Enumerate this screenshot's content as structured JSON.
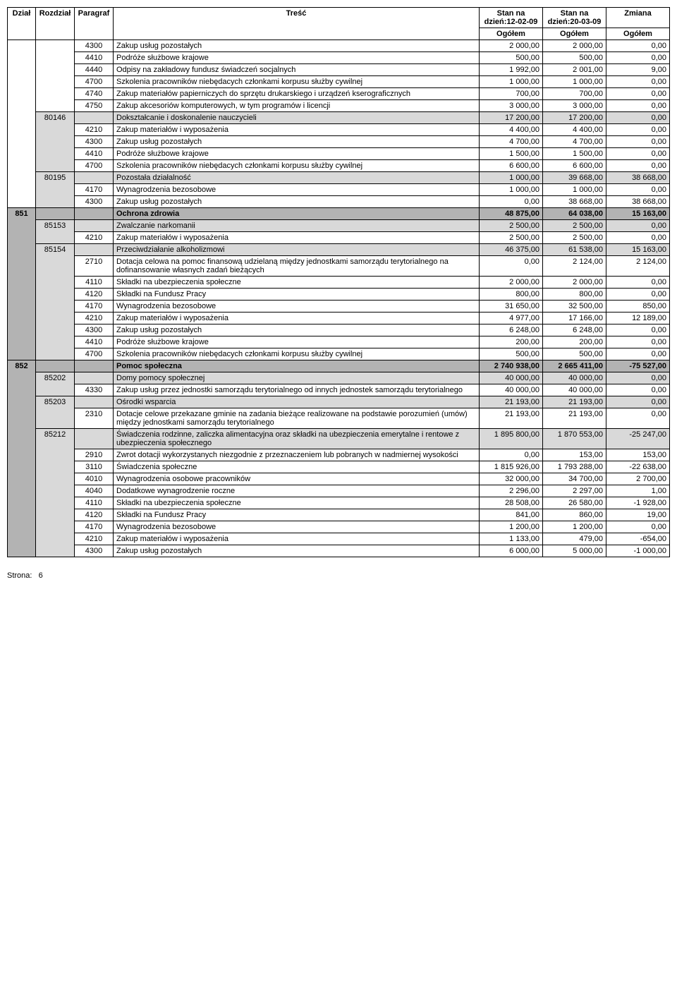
{
  "headers": {
    "dzial": "Dział",
    "rozdzial": "Rozdział",
    "paragraf": "Paragraf",
    "tresc": "Treść",
    "stan1": "Stan na dzień:12-02-09",
    "stan2": "Stan na dzień:20-03-09",
    "zmiana": "Zmiana",
    "ogolem": "Ogółem"
  },
  "footer": {
    "label": "Strona:",
    "page": "6"
  },
  "styling": {
    "font_family": "Arial, sans-serif",
    "font_size_pt": 11,
    "border_color": "#000000",
    "bg_dzial": "#b3b3b3",
    "bg_rozdzial": "#d9d9d9",
    "bg_paragraf": "#ffffff",
    "text_color": "#000000"
  },
  "rows": [
    {
      "level": "paragraf",
      "dzial": "",
      "rozdzial": "",
      "paragraf": "4300",
      "tresc": "Zakup usług pozostałych",
      "v1": "2 000,00",
      "v2": "2 000,00",
      "v3": "0,00"
    },
    {
      "level": "paragraf",
      "dzial": "",
      "rozdzial": "",
      "paragraf": "4410",
      "tresc": "Podróże służbowe krajowe",
      "v1": "500,00",
      "v2": "500,00",
      "v3": "0,00"
    },
    {
      "level": "paragraf",
      "dzial": "",
      "rozdzial": "",
      "paragraf": "4440",
      "tresc": "Odpisy na zakładowy fundusz świadczeń socjalnych",
      "v1": "1 992,00",
      "v2": "2 001,00",
      "v3": "9,00"
    },
    {
      "level": "paragraf",
      "dzial": "",
      "rozdzial": "",
      "paragraf": "4700",
      "tresc": "Szkolenia pracowników niebędacych członkami korpusu służby cywilnej",
      "v1": "1 000,00",
      "v2": "1 000,00",
      "v3": "0,00"
    },
    {
      "level": "paragraf",
      "dzial": "",
      "rozdzial": "",
      "paragraf": "4740",
      "tresc": "Zakup materiałów papierniczych do sprzętu drukarskiego i urządzeń kserograficznych",
      "v1": "700,00",
      "v2": "700,00",
      "v3": "0,00"
    },
    {
      "level": "paragraf",
      "dzial": "",
      "rozdzial": "",
      "paragraf": "4750",
      "tresc": "Zakup akcesoriów komputerowych, w tym programów i licencji",
      "v1": "3 000,00",
      "v2": "3 000,00",
      "v3": "0,00"
    },
    {
      "level": "rozdzial",
      "dzial": "",
      "rozdzial": "80146",
      "paragraf": "",
      "tresc": "Dokształcanie i doskonalenie nauczycieli",
      "v1": "17 200,00",
      "v2": "17 200,00",
      "v3": "0,00"
    },
    {
      "level": "paragraf",
      "dzial": "",
      "rozdzial": "",
      "paragraf": "4210",
      "tresc": "Zakup materiałów i wyposażenia",
      "v1": "4 400,00",
      "v2": "4 400,00",
      "v3": "0,00"
    },
    {
      "level": "paragraf",
      "dzial": "",
      "rozdzial": "",
      "paragraf": "4300",
      "tresc": "Zakup usług pozostałych",
      "v1": "4 700,00",
      "v2": "4 700,00",
      "v3": "0,00"
    },
    {
      "level": "paragraf",
      "dzial": "",
      "rozdzial": "",
      "paragraf": "4410",
      "tresc": "Podróże służbowe krajowe",
      "v1": "1 500,00",
      "v2": "1 500,00",
      "v3": "0,00"
    },
    {
      "level": "paragraf",
      "dzial": "",
      "rozdzial": "",
      "paragraf": "4700",
      "tresc": "Szkolenia pracowników niebędacych członkami korpusu służby cywilnej",
      "v1": "6 600,00",
      "v2": "6 600,00",
      "v3": "0,00"
    },
    {
      "level": "rozdzial",
      "dzial": "",
      "rozdzial": "80195",
      "paragraf": "",
      "tresc": "Pozostała działalność",
      "v1": "1 000,00",
      "v2": "39 668,00",
      "v3": "38 668,00"
    },
    {
      "level": "paragraf",
      "dzial": "",
      "rozdzial": "",
      "paragraf": "4170",
      "tresc": "Wynagrodzenia bezosobowe",
      "v1": "1 000,00",
      "v2": "1 000,00",
      "v3": "0,00"
    },
    {
      "level": "paragraf",
      "dzial": "",
      "rozdzial": "",
      "paragraf": "4300",
      "tresc": "Zakup usług pozostałych",
      "v1": "0,00",
      "v2": "38 668,00",
      "v3": "38 668,00"
    },
    {
      "level": "dzial",
      "dzial": "851",
      "rozdzial": "",
      "paragraf": "",
      "tresc": "Ochrona zdrowia",
      "v1": "48 875,00",
      "v2": "64 038,00",
      "v3": "15 163,00"
    },
    {
      "level": "rozdzial",
      "dzial": "",
      "rozdzial": "85153",
      "paragraf": "",
      "tresc": "Zwalczanie narkomanii",
      "v1": "2 500,00",
      "v2": "2 500,00",
      "v3": "0,00"
    },
    {
      "level": "paragraf",
      "dzial": "",
      "rozdzial": "",
      "paragraf": "4210",
      "tresc": "Zakup materiałów i wyposażenia",
      "v1": "2 500,00",
      "v2": "2 500,00",
      "v3": "0,00"
    },
    {
      "level": "rozdzial",
      "dzial": "",
      "rozdzial": "85154",
      "paragraf": "",
      "tresc": "Przeciwdziałanie alkoholizmowi",
      "v1": "46 375,00",
      "v2": "61 538,00",
      "v3": "15 163,00"
    },
    {
      "level": "paragraf",
      "dzial": "",
      "rozdzial": "",
      "paragraf": "2710",
      "tresc": "Dotacja celowa na pomoc finansową udzielaną między jednostkami samorządu terytorialnego na dofinansowanie własnych zadań bieżących",
      "v1": "0,00",
      "v2": "2 124,00",
      "v3": "2 124,00"
    },
    {
      "level": "paragraf",
      "dzial": "",
      "rozdzial": "",
      "paragraf": "4110",
      "tresc": "Składki na ubezpieczenia społeczne",
      "v1": "2 000,00",
      "v2": "2 000,00",
      "v3": "0,00"
    },
    {
      "level": "paragraf",
      "dzial": "",
      "rozdzial": "",
      "paragraf": "4120",
      "tresc": "Składki na Fundusz Pracy",
      "v1": "800,00",
      "v2": "800,00",
      "v3": "0,00"
    },
    {
      "level": "paragraf",
      "dzial": "",
      "rozdzial": "",
      "paragraf": "4170",
      "tresc": "Wynagrodzenia bezosobowe",
      "v1": "31 650,00",
      "v2": "32 500,00",
      "v3": "850,00"
    },
    {
      "level": "paragraf",
      "dzial": "",
      "rozdzial": "",
      "paragraf": "4210",
      "tresc": "Zakup materiałów i wyposażenia",
      "v1": "4 977,00",
      "v2": "17 166,00",
      "v3": "12 189,00"
    },
    {
      "level": "paragraf",
      "dzial": "",
      "rozdzial": "",
      "paragraf": "4300",
      "tresc": "Zakup usług pozostałych",
      "v1": "6 248,00",
      "v2": "6 248,00",
      "v3": "0,00"
    },
    {
      "level": "paragraf",
      "dzial": "",
      "rozdzial": "",
      "paragraf": "4410",
      "tresc": "Podróże służbowe krajowe",
      "v1": "200,00",
      "v2": "200,00",
      "v3": "0,00"
    },
    {
      "level": "paragraf",
      "dzial": "",
      "rozdzial": "",
      "paragraf": "4700",
      "tresc": "Szkolenia pracowników niebędacych członkami korpusu służby cywilnej",
      "v1": "500,00",
      "v2": "500,00",
      "v3": "0,00"
    },
    {
      "level": "dzial",
      "dzial": "852",
      "rozdzial": "",
      "paragraf": "",
      "tresc": "Pomoc społeczna",
      "v1": "2 740 938,00",
      "v2": "2 665 411,00",
      "v3": "-75 527,00"
    },
    {
      "level": "rozdzial",
      "dzial": "",
      "rozdzial": "85202",
      "paragraf": "",
      "tresc": "Domy pomocy społecznej",
      "v1": "40 000,00",
      "v2": "40 000,00",
      "v3": "0,00"
    },
    {
      "level": "paragraf",
      "dzial": "",
      "rozdzial": "",
      "paragraf": "4330",
      "tresc": "Zakup usług przez jednostki samorządu terytorialnego od innych jednostek samorządu terytorialnego",
      "v1": "40 000,00",
      "v2": "40 000,00",
      "v3": "0,00"
    },
    {
      "level": "rozdzial",
      "dzial": "",
      "rozdzial": "85203",
      "paragraf": "",
      "tresc": "Ośrodki wsparcia",
      "v1": "21 193,00",
      "v2": "21 193,00",
      "v3": "0,00"
    },
    {
      "level": "paragraf",
      "dzial": "",
      "rozdzial": "",
      "paragraf": "2310",
      "tresc": "Dotacje celowe przekazane gminie na zadania bieżące realizowane na podstawie porozumień (umów) między jednostkami samorządu terytorialnego",
      "v1": "21 193,00",
      "v2": "21 193,00",
      "v3": "0,00"
    },
    {
      "level": "rozdzial",
      "dzial": "",
      "rozdzial": "85212",
      "paragraf": "",
      "tresc": "Świadczenia rodzinne, zaliczka alimentacyjna oraz składki na ubezpieczenia emerytalne i rentowe z ubezpieczenia społecznego",
      "v1": "1 895 800,00",
      "v2": "1 870 553,00",
      "v3": "-25 247,00"
    },
    {
      "level": "paragraf",
      "dzial": "",
      "rozdzial": "",
      "paragraf": "2910",
      "tresc": "Zwrot dotacji wykorzystanych niezgodnie z przeznaczeniem lub pobranych w nadmiernej wysokości",
      "v1": "0,00",
      "v2": "153,00",
      "v3": "153,00"
    },
    {
      "level": "paragraf",
      "dzial": "",
      "rozdzial": "",
      "paragraf": "3110",
      "tresc": "Świadczenia społeczne",
      "v1": "1 815 926,00",
      "v2": "1 793 288,00",
      "v3": "-22 638,00"
    },
    {
      "level": "paragraf",
      "dzial": "",
      "rozdzial": "",
      "paragraf": "4010",
      "tresc": "Wynagrodzenia osobowe pracowników",
      "v1": "32 000,00",
      "v2": "34 700,00",
      "v3": "2 700,00"
    },
    {
      "level": "paragraf",
      "dzial": "",
      "rozdzial": "",
      "paragraf": "4040",
      "tresc": "Dodatkowe wynagrodzenie roczne",
      "v1": "2 296,00",
      "v2": "2 297,00",
      "v3": "1,00"
    },
    {
      "level": "paragraf",
      "dzial": "",
      "rozdzial": "",
      "paragraf": "4110",
      "tresc": "Składki na ubezpieczenia społeczne",
      "v1": "28 508,00",
      "v2": "26 580,00",
      "v3": "-1 928,00"
    },
    {
      "level": "paragraf",
      "dzial": "",
      "rozdzial": "",
      "paragraf": "4120",
      "tresc": "Składki na Fundusz Pracy",
      "v1": "841,00",
      "v2": "860,00",
      "v3": "19,00"
    },
    {
      "level": "paragraf",
      "dzial": "",
      "rozdzial": "",
      "paragraf": "4170",
      "tresc": "Wynagrodzenia bezosobowe",
      "v1": "1 200,00",
      "v2": "1 200,00",
      "v3": "0,00"
    },
    {
      "level": "paragraf",
      "dzial": "",
      "rozdzial": "",
      "paragraf": "4210",
      "tresc": "Zakup materiałów i wyposażenia",
      "v1": "1 133,00",
      "v2": "479,00",
      "v3": "-654,00"
    },
    {
      "level": "paragraf",
      "dzial": "",
      "rozdzial": "",
      "paragraf": "4300",
      "tresc": "Zakup usług pozostałych",
      "v1": "6 000,00",
      "v2": "5 000,00",
      "v3": "-1 000,00"
    }
  ]
}
